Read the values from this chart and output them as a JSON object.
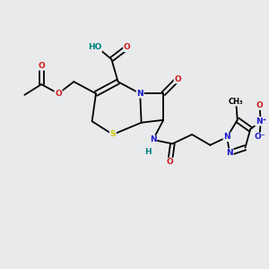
{
  "bg_color": "#e8eaec",
  "bond_color": "#000000",
  "bond_width": 1.3,
  "atom_colors": {
    "C": "#000000",
    "N": "#1a1acc",
    "O": "#cc1a1a",
    "S": "#cccc00",
    "H": "#008080",
    "plus": "#1a1acc",
    "minus": "#1a1acc"
  },
  "font_size": 6.5,
  "figsize": [
    3.0,
    3.0
  ],
  "dpi": 100,
  "xlim": [
    0,
    10
  ],
  "ylim": [
    0,
    10
  ]
}
